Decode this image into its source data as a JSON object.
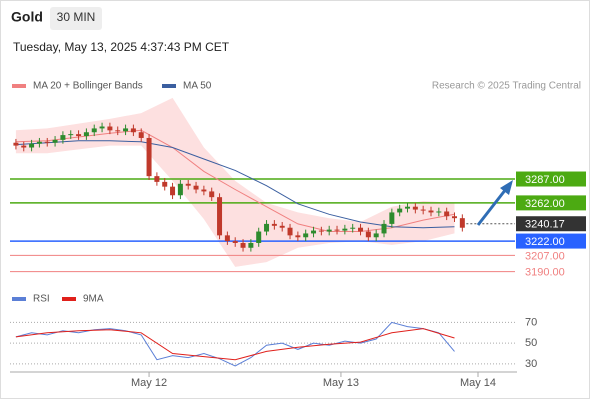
{
  "header": {
    "title": "Gold",
    "interval": "30 MIN",
    "timestamp": "Tuesday, May 13, 2025 4:37:43 PM CET"
  },
  "chart_data": [
    {
      "type": "candlestick",
      "attribution": "Research © 2025 Trading Central",
      "xlim": [
        -0.5,
        59
      ],
      "ylim": [
        3176,
        3375
      ],
      "up_color": "#2e8b2e",
      "down_color": "#c0392b",
      "open": [
        3325,
        3322,
        3320,
        3324,
        3326,
        3325,
        3328,
        3333,
        3334,
        3332,
        3336,
        3340,
        3342,
        3338,
        3337,
        3340,
        3336,
        3330,
        3290,
        3284,
        3279,
        3270,
        3282,
        3280,
        3276,
        3274,
        3268,
        3228,
        3222,
        3220,
        3215,
        3220,
        3232,
        3240,
        3238,
        3236,
        3228,
        3226,
        3230,
        3233,
        3232,
        3234,
        3233,
        3235,
        3236,
        3232,
        3226,
        3230,
        3240,
        3252,
        3256,
        3258,
        3255,
        3254,
        3252,
        3253,
        3248,
        3246
      ],
      "high": [
        3329,
        3326,
        3328,
        3330,
        3330,
        3332,
        3337,
        3338,
        3338,
        3340,
        3344,
        3346,
        3346,
        3342,
        3344,
        3344,
        3340,
        3334,
        3294,
        3288,
        3283,
        3286,
        3286,
        3284,
        3280,
        3278,
        3272,
        3232,
        3226,
        3224,
        3224,
        3236,
        3244,
        3244,
        3242,
        3240,
        3232,
        3234,
        3237,
        3237,
        3238,
        3238,
        3239,
        3240,
        3240,
        3236,
        3234,
        3244,
        3256,
        3260,
        3262,
        3262,
        3259,
        3258,
        3257,
        3257,
        3252,
        3250
      ],
      "low": [
        3318,
        3316,
        3316,
        3320,
        3321,
        3321,
        3324,
        3329,
        3328,
        3328,
        3332,
        3336,
        3334,
        3333,
        3333,
        3332,
        3326,
        3286,
        3280,
        3275,
        3266,
        3266,
        3276,
        3272,
        3270,
        3264,
        3224,
        3218,
        3216,
        3211,
        3211,
        3216,
        3228,
        3234,
        3232,
        3224,
        3222,
        3222,
        3226,
        3228,
        3228,
        3229,
        3229,
        3231,
        3228,
        3222,
        3222,
        3226,
        3236,
        3248,
        3252,
        3251,
        3250,
        3248,
        3248,
        3244,
        3242,
        3232
      ],
      "close": [
        3322,
        3320,
        3324,
        3326,
        3325,
        3328,
        3333,
        3334,
        3332,
        3336,
        3340,
        3342,
        3338,
        3337,
        3340,
        3336,
        3330,
        3290,
        3284,
        3279,
        3270,
        3282,
        3280,
        3276,
        3274,
        3268,
        3228,
        3222,
        3220,
        3215,
        3220,
        3232,
        3240,
        3238,
        3236,
        3228,
        3226,
        3230,
        3233,
        3232,
        3234,
        3233,
        3235,
        3236,
        3232,
        3226,
        3230,
        3240,
        3252,
        3256,
        3258,
        3255,
        3254,
        3252,
        3253,
        3248,
        3246,
        3236
      ],
      "series": [
        {
          "name": "MA 20 + Bollinger Bands",
          "color": "#f08080",
          "band_color": "#fde0e0",
          "x": [
            0,
            4,
            8,
            12,
            16,
            20,
            24,
            28,
            32,
            36,
            40,
            44,
            48,
            52,
            56
          ],
          "values": [
            3326,
            3327,
            3331,
            3335,
            3338,
            3320,
            3295,
            3276,
            3258,
            3240,
            3232,
            3232,
            3236,
            3244,
            3250
          ],
          "upper": [
            3338,
            3340,
            3345,
            3350,
            3356,
            3372,
            3320,
            3285,
            3262,
            3252,
            3246,
            3242,
            3258,
            3264,
            3262
          ],
          "lower": [
            3314,
            3314,
            3318,
            3322,
            3322,
            3285,
            3245,
            3195,
            3200,
            3215,
            3220,
            3222,
            3218,
            3222,
            3230
          ]
        },
        {
          "name": "MA 50",
          "color": "#3b5fa0",
          "x": [
            0,
            4,
            8,
            12,
            16,
            20,
            24,
            28,
            32,
            36,
            40,
            44,
            48,
            52,
            56
          ],
          "values": [
            3323,
            3325,
            3327,
            3327,
            3326,
            3320,
            3308,
            3296,
            3280,
            3261,
            3250,
            3242,
            3237,
            3236,
            3237
          ]
        }
      ],
      "levels": [
        {
          "value": 3287,
          "label": "3287.00",
          "color": "#4caa12",
          "style": "box"
        },
        {
          "value": 3262,
          "label": "3262.00",
          "color": "#4caa12",
          "style": "box"
        },
        {
          "value": 3240.17,
          "label": "3240.17",
          "color": "#333333",
          "style": "current"
        },
        {
          "value": 3222,
          "label": "3222.00",
          "color": "#2962ff",
          "style": "box"
        },
        {
          "value": 3207,
          "label": "3207.00",
          "color": "#f08080",
          "style": "text"
        },
        {
          "value": 3190,
          "label": "3190.00",
          "color": "#f08080",
          "style": "text"
        }
      ]
    },
    {
      "type": "line",
      "xlim": [
        -0.5,
        59
      ],
      "ylim": [
        26,
        82
      ],
      "yticks": [
        70,
        50,
        30
      ],
      "xticks": [
        {
          "value": 17,
          "label": "May 12"
        },
        {
          "value": 41.5,
          "label": "May 13"
        },
        {
          "value": 59,
          "label": "May 14"
        }
      ],
      "series": [
        {
          "name": "RSI",
          "color": "#5b7fd6",
          "x": [
            0,
            2,
            4,
            6,
            8,
            10,
            12,
            14,
            16,
            18,
            20,
            22,
            24,
            26,
            28,
            30,
            32,
            34,
            36,
            38,
            40,
            42,
            44,
            46,
            48,
            50,
            52,
            54,
            56
          ],
          "values": [
            56,
            60,
            58,
            62,
            60,
            63,
            64,
            62,
            58,
            34,
            38,
            36,
            40,
            35,
            28,
            36,
            48,
            50,
            44,
            50,
            48,
            52,
            50,
            54,
            70,
            66,
            64,
            60,
            42
          ]
        },
        {
          "name": "9MA",
          "color": "#e0201b",
          "x": [
            0,
            4,
            8,
            12,
            16,
            20,
            24,
            28,
            32,
            36,
            40,
            44,
            48,
            52,
            56
          ],
          "values": [
            56,
            60,
            62,
            63,
            60,
            40,
            37,
            34,
            42,
            46,
            49,
            51,
            60,
            64,
            55
          ]
        }
      ]
    }
  ]
}
